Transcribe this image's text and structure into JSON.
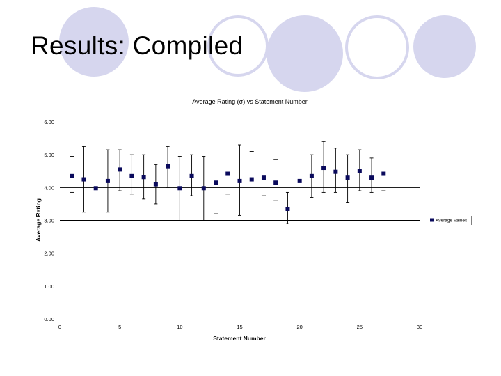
{
  "slide": {
    "title": "Results: Compiled"
  },
  "colors": {
    "marker": "#0a0a5c",
    "decor_circle": "#d6d6ee"
  },
  "chart_data": {
    "type": "scatter",
    "title": "Average Rating (σ) vs Statement Number",
    "xlabel": "Statement Number",
    "ylabel": "Average Rating",
    "xlim": [
      0,
      30
    ],
    "ylim": [
      0,
      6
    ],
    "x_ticks": [
      "0",
      "5",
      "10",
      "15",
      "20",
      "25",
      "30"
    ],
    "y_ticks": [
      "0.00",
      "1.00",
      "2.00",
      "3.00",
      "4.00",
      "5.00",
      "6.00"
    ],
    "reference_lines_y": [
      3,
      4
    ],
    "legend": {
      "placement": "right",
      "label": "Average Values"
    },
    "series": [
      {
        "name": "Average Values",
        "points": [
          {
            "x": 1,
            "y": 4.35
          },
          {
            "x": 2,
            "y": 4.25,
            "low": 3.25,
            "high": 5.25
          },
          {
            "x": 3,
            "y": 3.98
          },
          {
            "x": 4,
            "y": 4.2,
            "low": 3.25,
            "high": 5.15
          },
          {
            "x": 5,
            "y": 4.55,
            "low": 3.9,
            "high": 5.15
          },
          {
            "x": 6,
            "y": 4.35,
            "low": 3.8,
            "high": 5.0
          },
          {
            "x": 7,
            "y": 4.32,
            "low": 3.65,
            "high": 5.0
          },
          {
            "x": 8,
            "y": 4.1,
            "low": 3.5,
            "high": 4.7
          },
          {
            "x": 9,
            "y": 4.65,
            "low": 4.0,
            "high": 5.25
          },
          {
            "x": 10,
            "y": 3.98,
            "low": 3.0,
            "high": 4.95
          },
          {
            "x": 11,
            "y": 4.35,
            "low": 3.75,
            "high": 5.0
          },
          {
            "x": 12,
            "y": 3.98,
            "low": 3.0,
            "high": 4.95
          },
          {
            "x": 13,
            "y": 4.15
          },
          {
            "x": 14,
            "y": 4.42
          },
          {
            "x": 15,
            "y": 4.2,
            "low": 3.15,
            "high": 5.3
          },
          {
            "x": 16,
            "y": 4.25
          },
          {
            "x": 17,
            "y": 4.3
          },
          {
            "x": 18,
            "y": 4.15
          },
          {
            "x": 19,
            "y": 3.35,
            "low": 2.9,
            "high": 3.85
          },
          {
            "x": 20,
            "y": 4.2
          },
          {
            "x": 21,
            "y": 4.35,
            "low": 3.7,
            "high": 5.0
          },
          {
            "x": 22,
            "y": 4.6,
            "low": 3.85,
            "high": 5.4
          },
          {
            "x": 23,
            "y": 4.48,
            "low": 3.85,
            "high": 5.2
          },
          {
            "x": 24,
            "y": 4.3,
            "low": 3.55,
            "high": 5.0
          },
          {
            "x": 25,
            "y": 4.5,
            "low": 3.9,
            "high": 5.15
          },
          {
            "x": 26,
            "y": 4.3,
            "low": 3.85,
            "high": 4.9
          },
          {
            "x": 27,
            "y": 4.42
          }
        ]
      }
    ],
    "dash_marks": [
      {
        "x": 1,
        "y": 4.95
      },
      {
        "x": 1,
        "y": 3.85
      },
      {
        "x": 3,
        "y": 3.0
      },
      {
        "x": 13,
        "y": 3.2
      },
      {
        "x": 14,
        "y": 3.8
      },
      {
        "x": 16,
        "y": 5.1
      },
      {
        "x": 17,
        "y": 3.75
      },
      {
        "x": 18,
        "y": 4.85
      },
      {
        "x": 18,
        "y": 3.6
      },
      {
        "x": 20,
        "y": 3.0
      },
      {
        "x": 27,
        "y": 3.9
      }
    ]
  }
}
